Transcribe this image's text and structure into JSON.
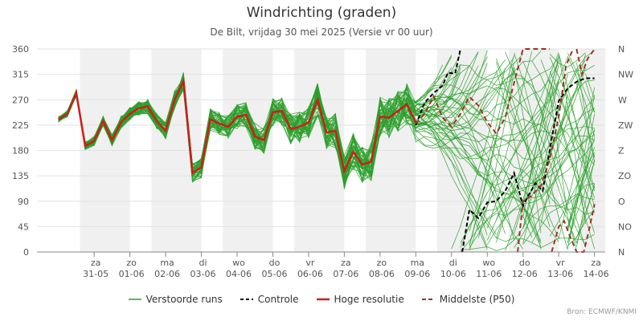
{
  "title": "Windrichting (graden)",
  "subtitle": "De Bilt, vrijdag 30 mei 2025 (Versie vr 00 uur)",
  "credits": "Bron: ECMWF/KNMI",
  "chart_data": {
    "type": "line",
    "ylim": [
      0,
      360
    ],
    "y_ticks": [
      0,
      45,
      90,
      135,
      180,
      225,
      270,
      315,
      360
    ],
    "compass_ticks": [
      {
        "value": 0,
        "label": "N"
      },
      {
        "value": 45,
        "label": "NO"
      },
      {
        "value": 90,
        "label": "O"
      },
      {
        "value": 135,
        "label": "ZO"
      },
      {
        "value": 180,
        "label": "Z"
      },
      {
        "value": 225,
        "label": "ZW"
      },
      {
        "value": 270,
        "label": "W"
      },
      {
        "value": 315,
        "label": "NW"
      },
      {
        "value": 360,
        "label": "N"
      }
    ],
    "x_range_days": [
      -0.6,
      15.3
    ],
    "x_ticks": [
      {
        "day": 1,
        "label1": "za",
        "label2": "31-05"
      },
      {
        "day": 2,
        "label1": "zo",
        "label2": "01-06"
      },
      {
        "day": 3,
        "label1": "ma",
        "label2": "02-06"
      },
      {
        "day": 4,
        "label1": "di",
        "label2": "03-06"
      },
      {
        "day": 5,
        "label1": "wo",
        "label2": "04-06"
      },
      {
        "day": 6,
        "label1": "do",
        "label2": "05-06"
      },
      {
        "day": 7,
        "label1": "vr",
        "label2": "06-06"
      },
      {
        "day": 8,
        "label1": "za",
        "label2": "07-06"
      },
      {
        "day": 9,
        "label1": "zo",
        "label2": "08-06"
      },
      {
        "day": 10,
        "label1": "ma",
        "label2": "09-06"
      },
      {
        "day": 11,
        "label1": "di",
        "label2": "10-06"
      },
      {
        "day": 12,
        "label1": "wo",
        "label2": "11-06"
      },
      {
        "day": 13,
        "label1": "do",
        "label2": "12-06"
      },
      {
        "day": 14,
        "label1": "vr",
        "label2": "13-06"
      },
      {
        "day": 15,
        "label1": "za",
        "label2": "14-06"
      }
    ],
    "shaded_days": [
      [
        0.6,
        2.0
      ],
      [
        2.6,
        4.0
      ],
      [
        4.6,
        6.0
      ],
      [
        6.6,
        8.0
      ],
      [
        8.6,
        10.0
      ],
      [
        10.6,
        12.0
      ],
      [
        12.6,
        14.0
      ],
      [
        14.6,
        15.3
      ]
    ],
    "colors": {
      "ensemble": "#2ca02c",
      "control": "#000000",
      "hires": "#cc1f1a",
      "median": "#9b3324",
      "shade": "#f0f0f0"
    },
    "legend": [
      {
        "key": "ensemble",
        "label": "Verstoorde runs"
      },
      {
        "key": "control",
        "label": "Controle"
      },
      {
        "key": "hires",
        "label": "Hoge resolutie"
      },
      {
        "key": "median",
        "label": "Middelste (P50)"
      }
    ],
    "series": [
      {
        "name": "Hoge resolutie",
        "key": "hires",
        "x": [
          0,
          0.25,
          0.5,
          0.75,
          1.0,
          1.25,
          1.5,
          1.75,
          2.0,
          2.25,
          2.5,
          2.75,
          3.0,
          3.25,
          3.5,
          3.75,
          4.0,
          4.25,
          4.5,
          4.75,
          5.0,
          5.25,
          5.5,
          5.75,
          6.0,
          6.25,
          6.5,
          6.75,
          7.0,
          7.25,
          7.5,
          7.75,
          8.0,
          8.25,
          8.5,
          8.75,
          9.0,
          9.25,
          9.5,
          9.75,
          10.0
        ],
        "y": [
          235,
          245,
          282,
          188,
          197,
          232,
          198,
          230,
          245,
          255,
          258,
          232,
          215,
          270,
          303,
          140,
          150,
          235,
          228,
          222,
          240,
          243,
          205,
          198,
          248,
          250,
          218,
          222,
          230,
          270,
          212,
          215,
          143,
          178,
          155,
          160,
          240,
          238,
          250,
          262,
          230
        ]
      },
      {
        "name": "Controle",
        "key": "control",
        "segments": [
          {
            "x": [
              10.0,
              10.25,
              10.5,
              10.75,
              10.9,
              11.1,
              11.25
            ],
            "y": [
              225,
              265,
              282,
              295,
              318,
              316,
              360
            ]
          },
          {
            "x": [
              11.3,
              11.5,
              11.75,
              12.0,
              12.25,
              12.5,
              12.75,
              13.0,
              13.15,
              13.35,
              13.55,
              13.8,
              14.0,
              14.25,
              14.5,
              14.75,
              15.0
            ],
            "y": [
              0,
              75,
              60,
              88,
              90,
              108,
              140,
              82,
              100,
              122,
              108,
              200,
              268,
              290,
              302,
              308,
              308
            ]
          }
        ]
      },
      {
        "name": "Middelste (P50)",
        "key": "median",
        "segments": [
          {
            "x": [
              10.0,
              10.25,
              10.5,
              10.75,
              11.0,
              11.25,
              11.5,
              11.75,
              12.0,
              12.25,
              12.5,
              12.75,
              13.0,
              13.25,
              13.5,
              13.75
            ],
            "y": [
              228,
              245,
              276,
              238,
              222,
              245,
              275,
              260,
              230,
              210,
              238,
              300,
              360,
              360,
              360,
              360
            ]
          },
          {
            "x": [
              12.85,
              13.0,
              13.25,
              13.5,
              13.75,
              14.0,
              14.2,
              14.4
            ],
            "y": [
              0,
              90,
              100,
              118,
              165,
              240,
              330,
              360
            ]
          },
          {
            "x": [
              14.5,
              14.65,
              14.8,
              15.0
            ],
            "y": [
              360,
              315,
              342,
              360
            ]
          },
          {
            "x": [
              13.8,
              14.0,
              14.15,
              14.3,
              14.5,
              14.7,
              14.85,
              15.0
            ],
            "y": [
              0,
              45,
              55,
              30,
              0,
              0,
              40,
              85
            ]
          }
        ]
      }
    ]
  }
}
